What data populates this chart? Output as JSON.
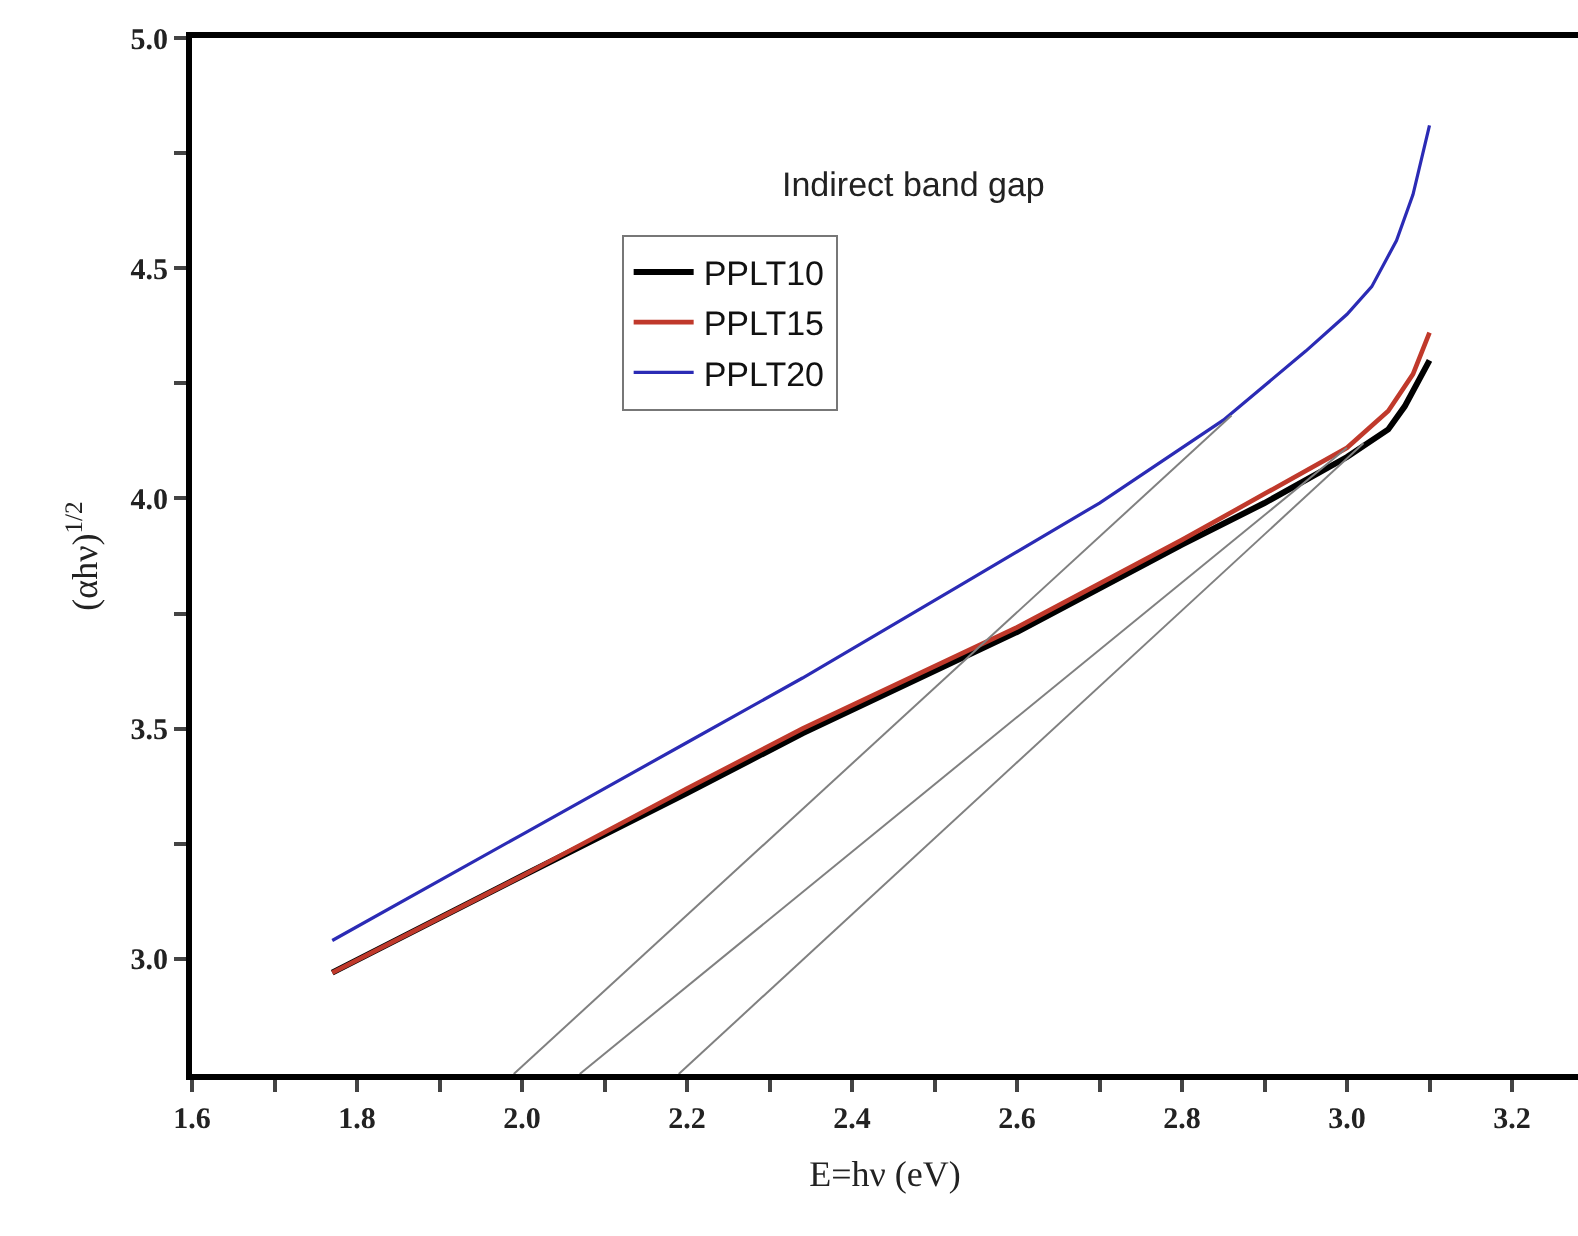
{
  "chart_data": {
    "type": "line",
    "xlabel": "E=hν (eV)",
    "ylabel": "(αhν)$^{1/2}$",
    "annotations": [
      "Indirect band gap"
    ],
    "xlim": [
      1.6,
      3.28
    ],
    "ylim": [
      2.75,
      5.0
    ],
    "xticks": [
      {
        "value": 1.6,
        "label": "1.6"
      },
      {
        "value": 1.7,
        "label": null
      },
      {
        "value": 1.8,
        "label": "1.8"
      },
      {
        "value": 1.9,
        "label": null
      },
      {
        "value": 2.0,
        "label": "2.0"
      },
      {
        "value": 2.1,
        "label": null
      },
      {
        "value": 2.2,
        "label": "2.2"
      },
      {
        "value": 2.3,
        "label": null
      },
      {
        "value": 2.4,
        "label": "2.4"
      },
      {
        "value": 2.5,
        "label": null
      },
      {
        "value": 2.6,
        "label": "2.6"
      },
      {
        "value": 2.7,
        "label": null
      },
      {
        "value": 2.8,
        "label": "2.8"
      },
      {
        "value": 2.9,
        "label": null
      },
      {
        "value": 3.0,
        "label": "3.0"
      },
      {
        "value": 3.1,
        "label": null
      },
      {
        "value": 3.2,
        "label": "3.2"
      }
    ],
    "yticks": [
      {
        "value": 3.0,
        "label": "3.0"
      },
      {
        "value": 3.25,
        "label": null
      },
      {
        "value": 3.5,
        "label": "3.5"
      },
      {
        "value": 3.75,
        "label": null
      },
      {
        "value": 4.0,
        "label": "4.0"
      },
      {
        "value": 4.25,
        "label": null
      },
      {
        "value": 4.5,
        "label": "4.5"
      },
      {
        "value": 4.75,
        "label": null
      },
      {
        "value": 5.0,
        "label": "5.0"
      }
    ],
    "grid": false,
    "legend": "top",
    "marker": "none",
    "line_style": "solid",
    "series": [
      {
        "name": "PPLT10",
        "color": "#000000",
        "x": [
          1.77,
          2.0,
          2.2,
          2.34,
          2.6,
          2.8,
          2.9,
          3.0,
          3.05,
          3.07,
          3.1
        ],
        "values": [
          2.97,
          3.18,
          3.36,
          3.49,
          3.71,
          3.9,
          3.99,
          4.09,
          4.15,
          4.2,
          4.3
        ]
      },
      {
        "name": "PPLT15",
        "color": "#c0392b",
        "x": [
          1.77,
          2.0,
          2.2,
          2.34,
          2.6,
          2.8,
          2.9,
          3.0,
          3.05,
          3.08,
          3.1
        ],
        "values": [
          2.97,
          3.18,
          3.37,
          3.5,
          3.72,
          3.91,
          4.01,
          4.11,
          4.19,
          4.27,
          4.36
        ]
      },
      {
        "name": "PPLT20",
        "color": "#2b2bb5",
        "x": [
          1.77,
          2.0,
          2.2,
          2.34,
          2.53,
          2.7,
          2.85,
          2.95,
          3.0,
          3.03,
          3.06,
          3.08,
          3.1
        ],
        "values": [
          3.04,
          3.27,
          3.47,
          3.61,
          3.81,
          3.99,
          4.17,
          4.32,
          4.4,
          4.46,
          4.56,
          4.66,
          4.81
        ]
      },
      {
        "type": "line",
        "color": "#808080",
        "x": [
          1.99,
          2.86
        ],
        "values": [
          2.75,
          4.18
        ]
      },
      {
        "type": "line",
        "color": "#808080",
        "x": [
          2.07,
          3.0
        ],
        "values": [
          2.75,
          4.11
        ]
      },
      {
        "type": "line",
        "color": "#808080",
        "x": [
          2.19,
          3.02
        ],
        "values": [
          2.75,
          4.12
        ]
      }
    ]
  }
}
